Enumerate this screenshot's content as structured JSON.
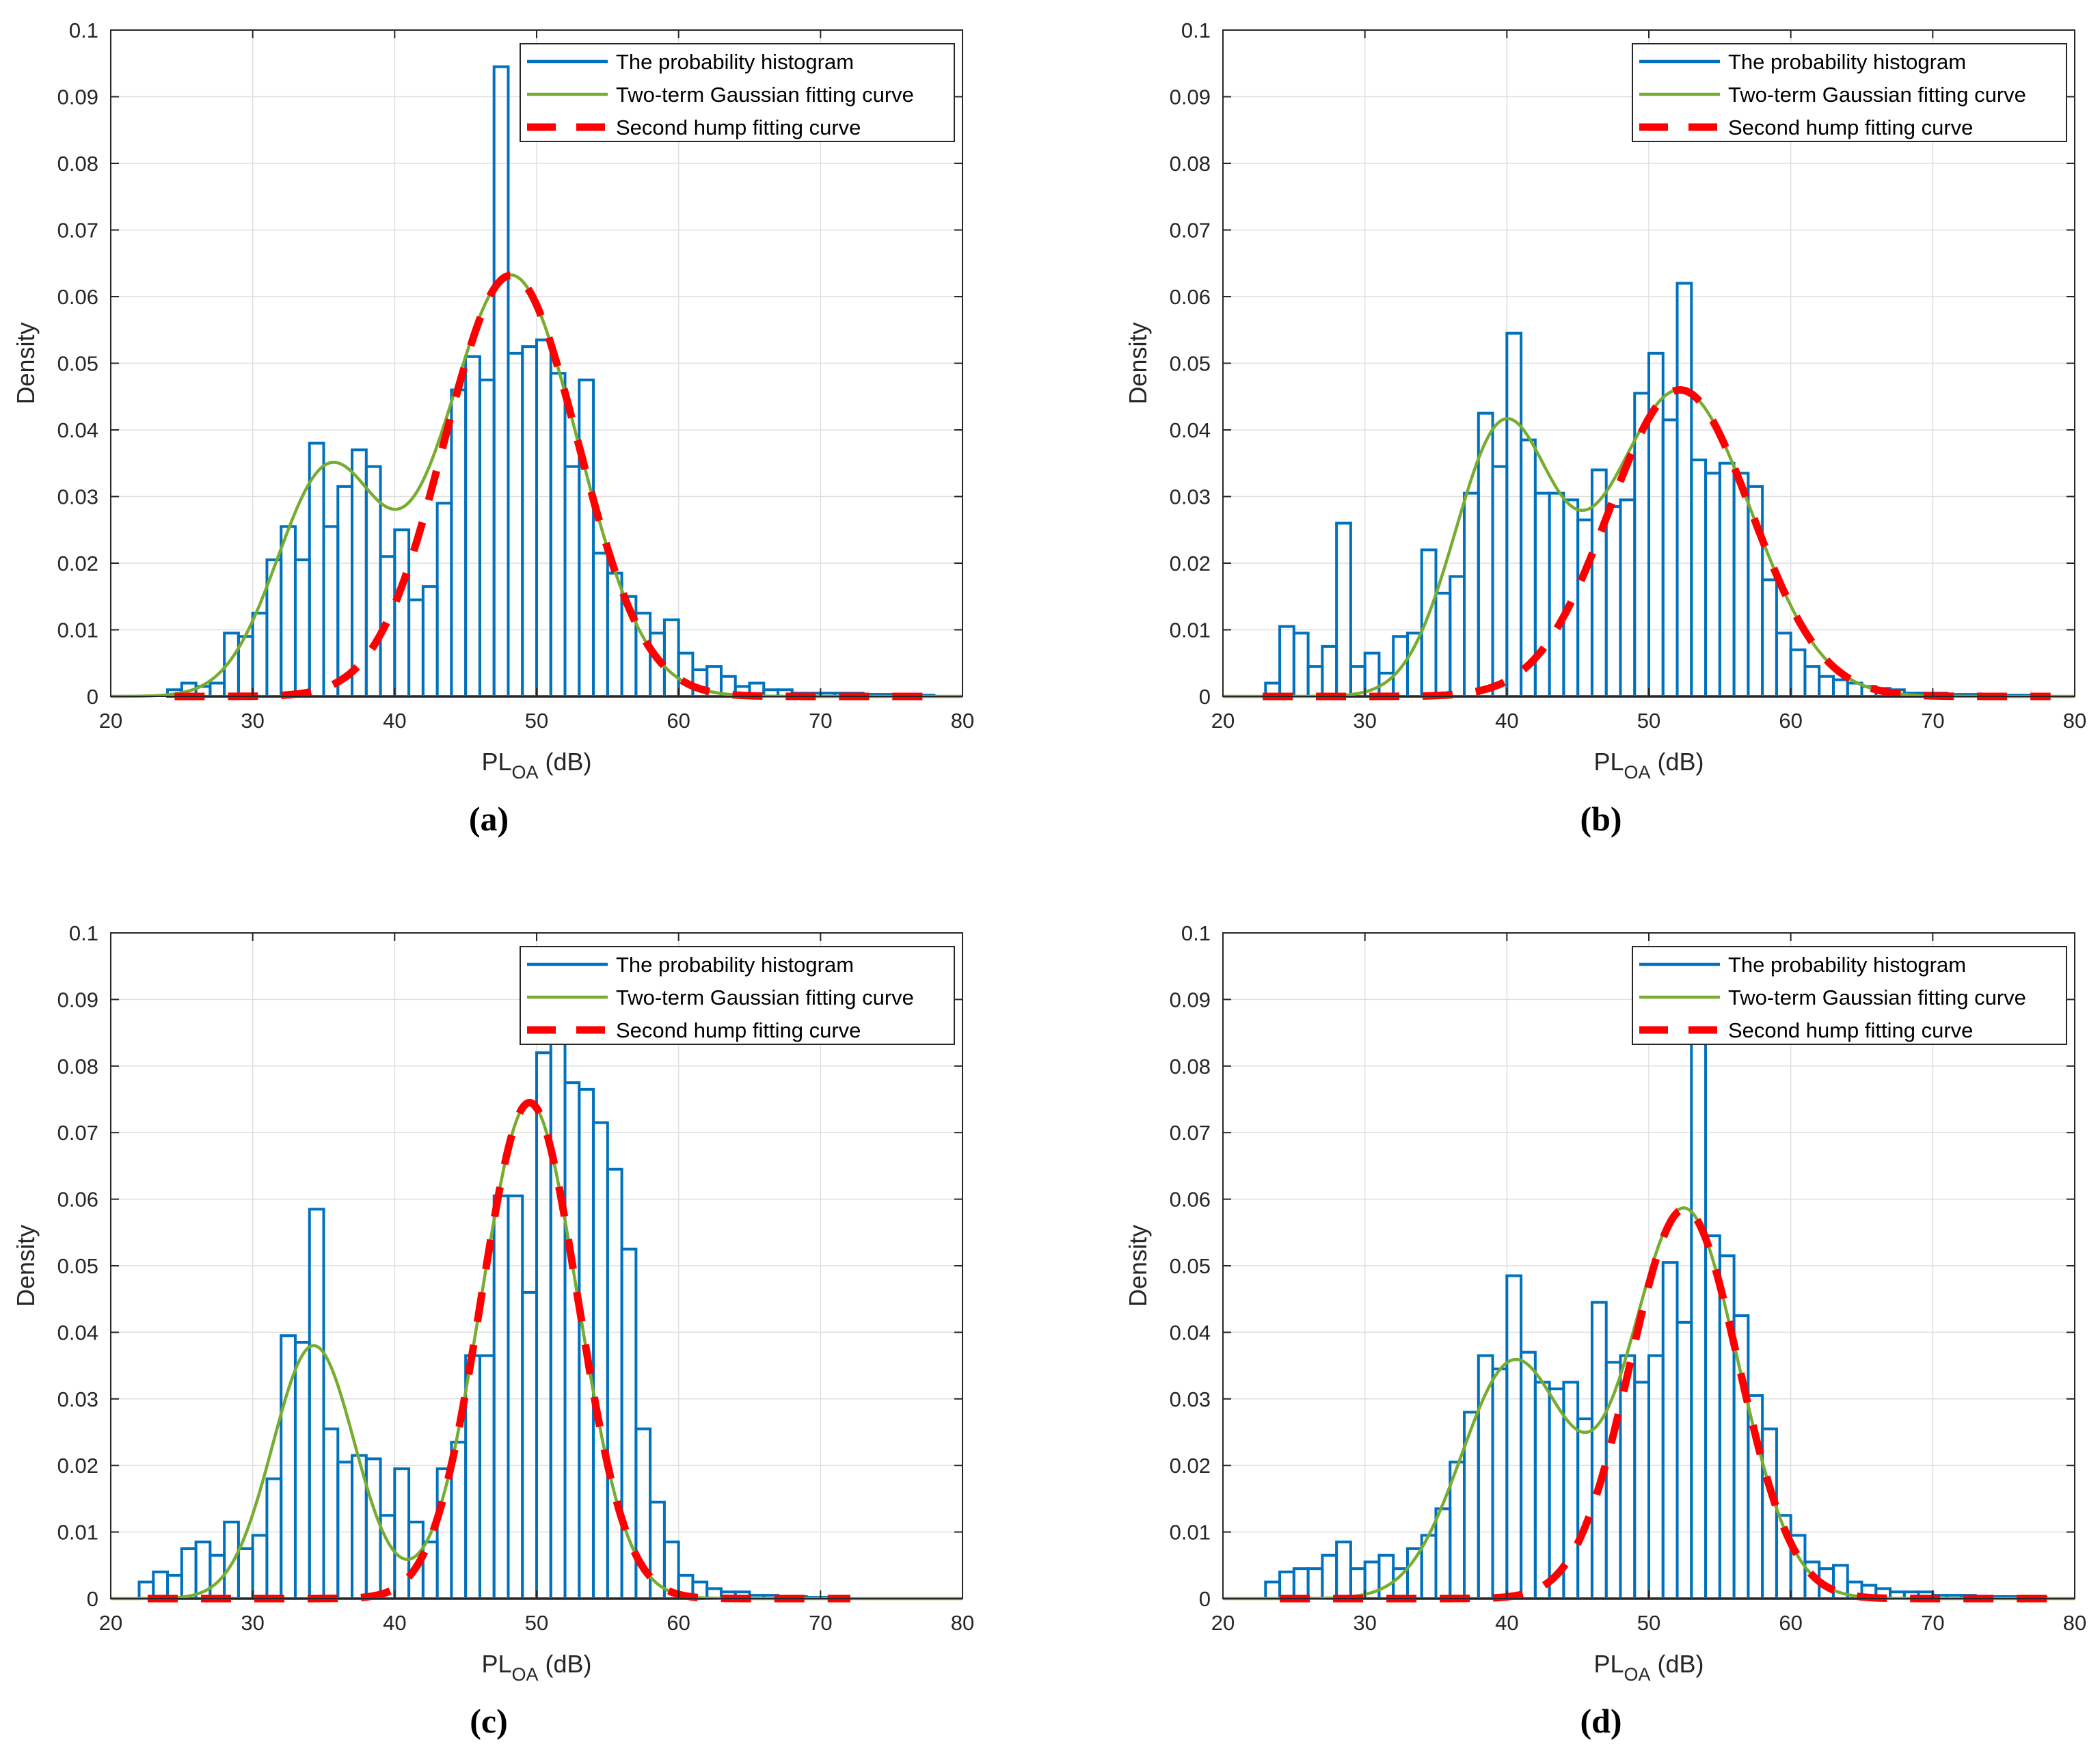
{
  "chart_data": [
    {
      "type": "bar",
      "panel_label": "(a)",
      "xlabel_main": "PL",
      "xlabel_sub": "OA",
      "xlabel_unit": " (dB)",
      "ylabel": "Density",
      "xlim": [
        20,
        80
      ],
      "ylim": [
        0,
        0.1
      ],
      "xticks": [
        "20",
        "30",
        "40",
        "50",
        "60",
        "70",
        "80"
      ],
      "yticks": [
        "0",
        "0.01",
        "0.02",
        "0.03",
        "0.04",
        "0.05",
        "0.06",
        "0.07",
        "0.08",
        "0.09",
        "0.1"
      ],
      "grid": true,
      "legend_position": "top-right",
      "legend": [
        "The probability histogram",
        "Two-term Gaussian fitting curve",
        "Second hump fitting curve"
      ],
      "bin_start": 24,
      "bin_width": 1,
      "histogram": [
        0.001,
        0.002,
        0.0015,
        0.002,
        0.0095,
        0.009,
        0.0125,
        0.0205,
        0.0255,
        0.0205,
        0.038,
        0.0255,
        0.0315,
        0.037,
        0.0345,
        0.021,
        0.025,
        0.0145,
        0.0165,
        0.029,
        0.046,
        0.051,
        0.0475,
        0.0945,
        0.0515,
        0.0525,
        0.0535,
        0.0485,
        0.0345,
        0.0475,
        0.0215,
        0.0185,
        0.015,
        0.0125,
        0.0095,
        0.0115,
        0.0065,
        0.004,
        0.0045,
        0.003,
        0.0015,
        0.002,
        0.001,
        0.001,
        0.0005,
        0.0005,
        0.0005,
        0.0005,
        0.0005,
        0.0003,
        0.0003,
        0.0003,
        0.0003,
        0.0002
      ],
      "gaussian_fit": [
        {
          "amplitude": 0.0335,
          "mean": 35.3,
          "sigma": 3.6
        },
        {
          "amplitude": 0.0632,
          "mean": 48.2,
          "sigma": 4.7
        }
      ],
      "curve_xrange": [
        20,
        80
      ],
      "hump_xrange": [
        24.5,
        78.5
      ]
    },
    {
      "type": "bar",
      "panel_label": "(b)",
      "xlabel_main": "PL",
      "xlabel_sub": "OA",
      "xlabel_unit": " (dB)",
      "ylabel": "Density",
      "xlim": [
        20,
        80
      ],
      "ylim": [
        0,
        0.1
      ],
      "xticks": [
        "20",
        "30",
        "40",
        "50",
        "60",
        "70",
        "80"
      ],
      "yticks": [
        "0",
        "0.01",
        "0.02",
        "0.03",
        "0.04",
        "0.05",
        "0.06",
        "0.07",
        "0.08",
        "0.09",
        "0.1"
      ],
      "grid": true,
      "legend_position": "top-right",
      "legend": [
        "The probability histogram",
        "Two-term Gaussian fitting curve",
        "Second hump fitting curve"
      ],
      "bin_start": 23,
      "bin_width": 1,
      "histogram": [
        0.002,
        0.0105,
        0.0095,
        0.0045,
        0.0075,
        0.026,
        0.0045,
        0.0065,
        0.0035,
        0.009,
        0.0095,
        0.022,
        0.0155,
        0.018,
        0.0305,
        0.0425,
        0.0345,
        0.0545,
        0.0385,
        0.0305,
        0.0305,
        0.0295,
        0.0265,
        0.034,
        0.0285,
        0.0295,
        0.0455,
        0.0515,
        0.0415,
        0.062,
        0.0355,
        0.0335,
        0.035,
        0.0335,
        0.0315,
        0.0175,
        0.0095,
        0.007,
        0.0045,
        0.003,
        0.0025,
        0.002,
        0.0015,
        0.0012,
        0.001,
        0.0005,
        0.0005,
        0.0005,
        0.0003,
        0.0003,
        0.0003,
        0.0003,
        0.0002,
        0.0002,
        0.0002
      ],
      "gaussian_fit": [
        {
          "amplitude": 0.0395,
          "mean": 39.7,
          "sigma": 3.4
        },
        {
          "amplitude": 0.046,
          "mean": 52.2,
          "sigma": 5.0
        }
      ],
      "curve_xrange": [
        20,
        80
      ],
      "hump_xrange": [
        22.8,
        78.3
      ]
    },
    {
      "type": "bar",
      "panel_label": "(c)",
      "xlabel_main": "PL",
      "xlabel_sub": "OA",
      "xlabel_unit": " (dB)",
      "ylabel": "Density",
      "xlim": [
        20,
        80
      ],
      "ylim": [
        0,
        0.1
      ],
      "xticks": [
        "20",
        "30",
        "40",
        "50",
        "60",
        "70",
        "80"
      ],
      "yticks": [
        "0",
        "0.01",
        "0.02",
        "0.03",
        "0.04",
        "0.05",
        "0.06",
        "0.07",
        "0.08",
        "0.09",
        "0.1"
      ],
      "grid": true,
      "legend_position": "top-right",
      "legend": [
        "The probability histogram",
        "Two-term Gaussian fitting curve",
        "Second hump fitting curve"
      ],
      "bin_start": 22,
      "bin_width": 1,
      "histogram": [
        0.0025,
        0.004,
        0.0035,
        0.0075,
        0.0085,
        0.0065,
        0.0115,
        0.0075,
        0.0095,
        0.018,
        0.0395,
        0.0385,
        0.0585,
        0.0255,
        0.0205,
        0.0215,
        0.021,
        0.0125,
        0.0195,
        0.0115,
        0.0085,
        0.0195,
        0.0235,
        0.0365,
        0.0365,
        0.0605,
        0.0605,
        0.046,
        0.082,
        0.0885,
        0.0775,
        0.0765,
        0.0715,
        0.0645,
        0.0525,
        0.0255,
        0.0145,
        0.0085,
        0.0035,
        0.0025,
        0.0015,
        0.001,
        0.001,
        0.0005,
        0.0005,
        0.0003,
        0.0003,
        0.0002,
        0.0002,
        0.0002
      ],
      "gaussian_fit": [
        {
          "amplitude": 0.038,
          "mean": 34.3,
          "sigma": 2.9
        },
        {
          "amplitude": 0.0745,
          "mean": 49.5,
          "sigma": 3.4
        }
      ],
      "curve_xrange": [
        20,
        80
      ],
      "hump_xrange": [
        22.6,
        72.1
      ]
    },
    {
      "type": "bar",
      "panel_label": "(d)",
      "xlabel_main": "PL",
      "xlabel_sub": "OA",
      "xlabel_unit": " (dB)",
      "ylabel": "Density",
      "xlim": [
        20,
        80
      ],
      "ylim": [
        0,
        0.1
      ],
      "xticks": [
        "20",
        "30",
        "40",
        "50",
        "60",
        "70",
        "80"
      ],
      "yticks": [
        "0",
        "0.01",
        "0.02",
        "0.03",
        "0.04",
        "0.05",
        "0.06",
        "0.07",
        "0.08",
        "0.09",
        "0.1"
      ],
      "grid": true,
      "legend_position": "top-right",
      "legend": [
        "The probability histogram",
        "Two-term Gaussian fitting curve",
        "Second hump fitting curve"
      ],
      "bin_start": 23,
      "bin_width": 1,
      "histogram": [
        0.0025,
        0.004,
        0.0045,
        0.0045,
        0.0065,
        0.0085,
        0.0045,
        0.0055,
        0.0065,
        0.0045,
        0.0075,
        0.0095,
        0.0135,
        0.0205,
        0.028,
        0.0365,
        0.0345,
        0.0485,
        0.037,
        0.0325,
        0.0315,
        0.0325,
        0.027,
        0.0445,
        0.0355,
        0.0365,
        0.0325,
        0.0365,
        0.0505,
        0.0415,
        0.0925,
        0.0545,
        0.0515,
        0.0425,
        0.0305,
        0.0255,
        0.0125,
        0.0095,
        0.0055,
        0.0045,
        0.005,
        0.0025,
        0.002,
        0.0015,
        0.001,
        0.001,
        0.001,
        0.0005,
        0.0005,
        0.0005,
        0.0003,
        0.0003,
        0.0003,
        0.0002,
        0.0002
      ],
      "gaussian_fit": [
        {
          "amplitude": 0.0355,
          "mean": 40.5,
          "sigma": 3.7
        },
        {
          "amplitude": 0.0585,
          "mean": 52.5,
          "sigma": 3.8
        }
      ],
      "curve_xrange": [
        20,
        80
      ],
      "hump_xrange": [
        24,
        78.5
      ]
    }
  ],
  "colors": {
    "histogram": "#0072BD",
    "gaussian": "#77AC30",
    "hump": "#FF0000",
    "grid": "#DFDFDF",
    "axes": "#262626"
  }
}
